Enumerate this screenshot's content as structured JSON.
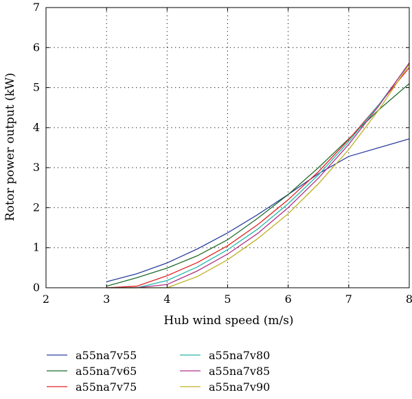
{
  "chart_data": {
    "type": "line",
    "title": "",
    "xlabel": "Hub wind speed (m/s)",
    "ylabel": "Rotor power output (kW)",
    "xlim": [
      2,
      8
    ],
    "ylim": [
      0,
      7
    ],
    "xticks": [
      "2",
      "3",
      "4",
      "5",
      "6",
      "7",
      "8"
    ],
    "yticks": [
      "0",
      "1",
      "2",
      "3",
      "4",
      "5",
      "6",
      "7"
    ],
    "grid": "dotted",
    "legend_position": "bottom",
    "series": [
      {
        "name": "a55na7v55",
        "color": "#2b3f9f",
        "x": [
          3,
          3.5,
          4,
          4.5,
          5,
          5.5,
          6,
          6.5,
          7,
          7.5,
          8
        ],
        "y": [
          0.15,
          0.35,
          0.62,
          0.97,
          1.37,
          1.83,
          2.33,
          2.85,
          3.28,
          3.5,
          3.72
        ]
      },
      {
        "name": "a55na7v65",
        "color": "#1e6b2a",
        "x": [
          3,
          3.5,
          4,
          4.5,
          5,
          5.5,
          6,
          6.5,
          7,
          7.5,
          8
        ],
        "y": [
          0.04,
          0.25,
          0.49,
          0.8,
          1.2,
          1.74,
          2.33,
          3.0,
          3.72,
          4.45,
          5.1
        ]
      },
      {
        "name": "a55na7v75",
        "color": "#e02020",
        "x": [
          3,
          3.5,
          4,
          4.5,
          5,
          5.5,
          6,
          6.5,
          7,
          7.5,
          8
        ],
        "y": [
          0.0,
          0.04,
          0.3,
          0.63,
          1.05,
          1.58,
          2.2,
          2.9,
          3.7,
          4.58,
          5.5
        ]
      },
      {
        "name": "a55na7v80",
        "color": "#20b8a8",
        "x": [
          3,
          3.5,
          4,
          4.5,
          5,
          5.5,
          6,
          6.5,
          7,
          7.5,
          8
        ],
        "y": [
          0.0,
          0.0,
          0.18,
          0.52,
          0.95,
          1.47,
          2.1,
          2.82,
          3.65,
          4.58,
          5.6
        ]
      },
      {
        "name": "a55na7v85",
        "color": "#b0308a",
        "x": [
          3,
          3.5,
          4,
          4.5,
          5,
          5.5,
          6,
          6.5,
          7,
          7.5,
          8
        ],
        "y": [
          0.0,
          0.0,
          0.08,
          0.42,
          0.84,
          1.36,
          2.0,
          2.74,
          3.58,
          4.55,
          5.62
        ]
      },
      {
        "name": "a55na7v90",
        "color": "#bdb020",
        "x": [
          3,
          3.5,
          4,
          4.5,
          5,
          5.5,
          6,
          6.5,
          7,
          7.5,
          8
        ],
        "y": [
          0.0,
          0.0,
          0.0,
          0.28,
          0.7,
          1.23,
          1.85,
          2.6,
          3.45,
          4.45,
          5.58
        ]
      }
    ]
  }
}
